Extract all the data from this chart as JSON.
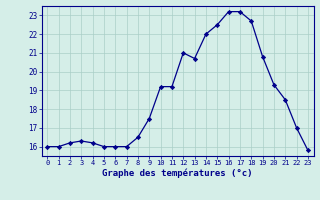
{
  "hours": [
    0,
    1,
    2,
    3,
    4,
    5,
    6,
    7,
    8,
    9,
    10,
    11,
    12,
    13,
    14,
    15,
    16,
    17,
    18,
    19,
    20,
    21,
    22,
    23
  ],
  "temps": [
    16.0,
    16.0,
    16.2,
    16.3,
    16.2,
    16.0,
    16.0,
    16.0,
    16.5,
    17.5,
    19.2,
    19.2,
    21.0,
    20.7,
    22.0,
    22.5,
    23.2,
    23.2,
    22.7,
    20.8,
    19.3,
    18.5,
    17.0,
    15.8
  ],
  "xlabel": "Graphe des températures (°c)",
  "ylim": [
    15.5,
    23.5
  ],
  "xlim": [
    -0.5,
    23.5
  ],
  "yticks": [
    16,
    17,
    18,
    19,
    20,
    21,
    22,
    23
  ],
  "xticks": [
    0,
    1,
    2,
    3,
    4,
    5,
    6,
    7,
    8,
    9,
    10,
    11,
    12,
    13,
    14,
    15,
    16,
    17,
    18,
    19,
    20,
    21,
    22,
    23
  ],
  "line_color": "#00008B",
  "marker_color": "#00008B",
  "bg_color": "#D5EEE8",
  "grid_color": "#AACFC8",
  "axis_color": "#00008B",
  "label_color": "#00008B",
  "tick_label_color": "#00008B",
  "fig_width": 3.2,
  "fig_height": 2.0,
  "dpi": 100
}
